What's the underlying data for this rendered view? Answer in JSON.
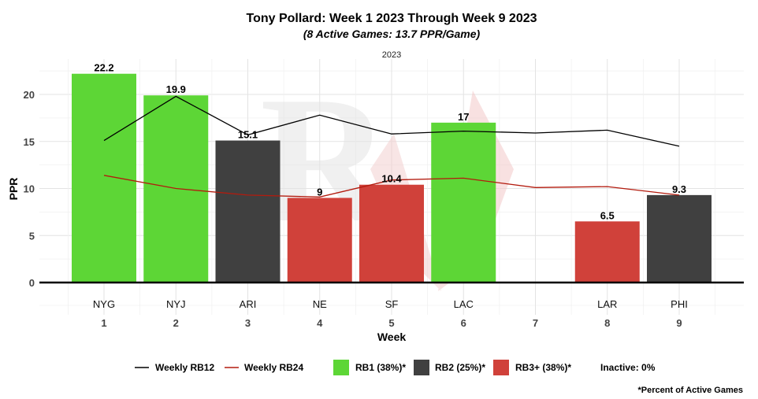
{
  "chart_data": {
    "type": "bar",
    "title": "Tony Pollard: Week 1 2023 Through Week 9 2023",
    "subtitle": "(8 Active Games: 13.7 PPR/Game)",
    "facet_label": "2023",
    "xlabel": "Week",
    "ylabel": "PPR",
    "ylim": [
      0,
      23
    ],
    "yticks": [
      0,
      5,
      10,
      15,
      20
    ],
    "weeks": [
      "1",
      "2",
      "3",
      "4",
      "5",
      "6",
      "7",
      "8",
      "9"
    ],
    "opponents": [
      "NYG",
      "NYJ",
      "ARI",
      "NE",
      "SF",
      "LAC",
      "",
      "LAR",
      "PHI"
    ],
    "values": [
      22.2,
      19.9,
      15.1,
      9,
      10.4,
      17,
      null,
      6.5,
      9.3
    ],
    "value_labels": [
      "22.2",
      "19.9",
      "15.1",
      "9",
      "10.4",
      "17",
      "",
      "6.5",
      "9.3"
    ],
    "tiers": [
      "RB1",
      "RB1",
      "RB2",
      "RB3+",
      "RB3+",
      "RB1",
      "",
      "RB3+",
      "RB2"
    ],
    "tier_colors": {
      "RB1": "#5dd636",
      "RB2": "#404040",
      "RB3+": "#d0413a"
    },
    "lines": [
      {
        "name": "Weekly RB12",
        "color": "#000000",
        "values": [
          15.1,
          19.8,
          15.7,
          17.8,
          15.8,
          16.1,
          15.9,
          16.2,
          14.5
        ]
      },
      {
        "name": "Weekly RB24",
        "color": "#b31b0e",
        "values": [
          11.4,
          10.0,
          9.3,
          9.1,
          10.9,
          11.1,
          10.1,
          10.2,
          9.3
        ]
      }
    ],
    "grid": true,
    "legend_position": "bottom"
  },
  "legend": {
    "rb12": "Weekly RB12",
    "rb24": "Weekly RB24",
    "rb1": "RB1 (38%)*",
    "rb2": "RB2 (25%)*",
    "rb3": "RB3+ (38%)*",
    "inactive": "Inactive: 0%"
  },
  "caption": "*Percent of Active Games",
  "watermark_text": "R"
}
